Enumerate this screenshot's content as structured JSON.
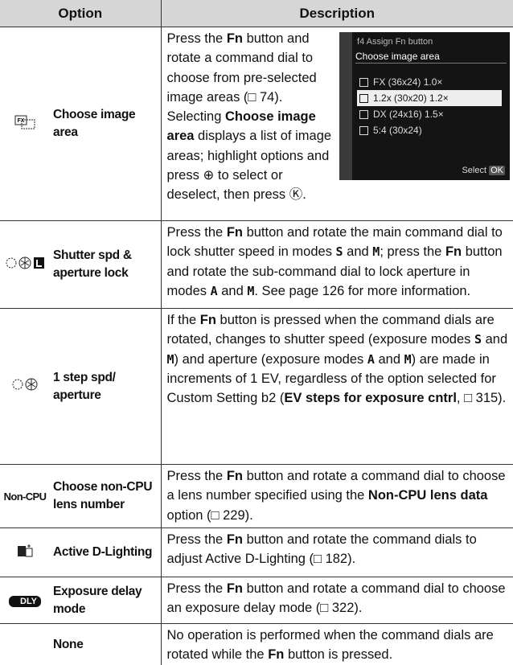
{
  "table": {
    "header": [
      "Option",
      "Description"
    ],
    "rows": [
      {
        "option": "Choose image area",
        "screen": {
          "title": "f4 Assign Fn button",
          "subtitle": "Choose image area",
          "items": [
            "FX (36x24) 1.0×",
            "1.2x (30x20) 1.2×",
            "DX (24x16) 1.5×",
            "5:4 (30x24)"
          ],
          "select": "Select",
          "ok": "OK"
        },
        "description": [
          {
            "text": "Press the "
          },
          {
            "text": "Fn",
            "style": "bold"
          },
          {
            "text": " button and rotate a command dial to choose from pre-selected image areas (□ 74). Selecting "
          },
          {
            "text": "Choose image area",
            "style": "bold"
          },
          {
            "text": " displays a list of image areas; highlight options and press ⊕ to select or deselect, then press Ⓚ."
          }
        ]
      },
      {
        "option": "Shutter spd & aperture lock",
        "description": [
          {
            "text": "Press the "
          },
          {
            "text": "Fn",
            "style": "bold"
          },
          {
            "text": " button and rotate the main command dial to lock shutter speed in modes "
          },
          {
            "text": "S",
            "style": "mode"
          },
          {
            "text": " and "
          },
          {
            "text": "M",
            "style": "mode"
          },
          {
            "text": "; press the "
          },
          {
            "text": "Fn",
            "style": "bold"
          },
          {
            "text": " button and rotate the sub-command dial to lock aperture in modes "
          },
          {
            "text": "A",
            "style": "mode"
          },
          {
            "text": " and "
          },
          {
            "text": "M",
            "style": "mode"
          },
          {
            "text": ". See page 126 for more information."
          }
        ]
      },
      {
        "option": "1 step spd/ aperture",
        "description": [
          {
            "text": "If the "
          },
          {
            "text": "Fn",
            "style": "bold"
          },
          {
            "text": " button is pressed when the command dials are rotated, changes to shutter speed (exposure modes "
          },
          {
            "text": "S",
            "style": "mode"
          },
          {
            "text": " and "
          },
          {
            "text": "M",
            "style": "mode"
          },
          {
            "text": ") and aperture (exposure modes "
          },
          {
            "text": "A",
            "style": "mode"
          },
          {
            "text": " and "
          },
          {
            "text": "M",
            "style": "mode"
          },
          {
            "text": ") are made in increments of 1 EV, regardless of the option selected for Custom Setting b2 ("
          },
          {
            "text": "EV steps for exposure cntrl",
            "style": "bold"
          },
          {
            "text": ", □ 315)."
          }
        ]
      },
      {
        "option": "Choose non-CPU lens number",
        "icon_text": "Non-CPU",
        "description": [
          {
            "text": "Press the "
          },
          {
            "text": "Fn",
            "style": "bold"
          },
          {
            "text": " button and rotate a command dial to choose a lens number specified using the "
          },
          {
            "text": "Non-CPU lens data",
            "style": "bold"
          },
          {
            "text": " option (□ 229)."
          }
        ]
      },
      {
        "option": "Active D-Lighting",
        "description": [
          {
            "text": "Press the "
          },
          {
            "text": "Fn",
            "style": "bold"
          },
          {
            "text": " button and rotate the command dials to adjust Active D-Lighting (□ 182)."
          }
        ]
      },
      {
        "option": "Exposure delay mode",
        "icon_text": "DLY",
        "description": [
          {
            "text": "Press the "
          },
          {
            "text": "Fn",
            "style": "bold"
          },
          {
            "text": " button and rotate a command dial to choose an exposure delay mode (□ 322)."
          }
        ]
      },
      {
        "option": "None",
        "description": [
          {
            "text": "No operation is performed when the command dials are rotated while the "
          },
          {
            "text": "Fn",
            "style": "bold"
          },
          {
            "text": " button is pressed."
          }
        ]
      }
    ]
  }
}
